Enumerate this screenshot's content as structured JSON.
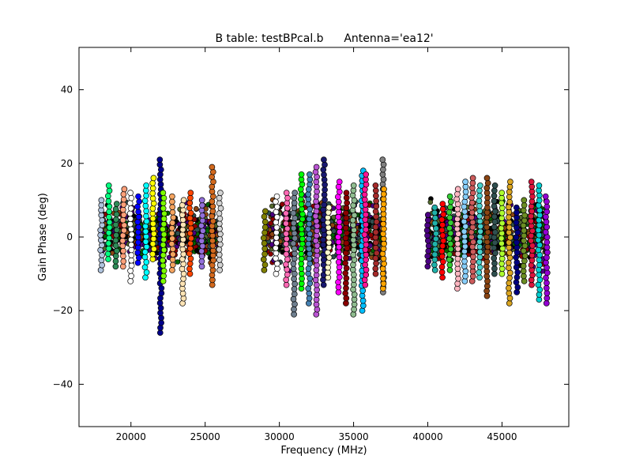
{
  "chart_data": {
    "type": "scatter",
    "title": "B table: testBPcal.b",
    "subtitle": "Antenna='ea12'",
    "xlabel": "Frequency (MHz)",
    "ylabel": "Gain Phase (deg)",
    "xlim": [
      16500,
      49500
    ],
    "ylim": [
      -51.5,
      51.5
    ],
    "xticks": [
      20000,
      25000,
      30000,
      35000,
      40000,
      45000
    ],
    "yticks": [
      -40,
      -20,
      0,
      20,
      40
    ],
    "xtick_labels": [
      "20000",
      "25000",
      "30000",
      "35000",
      "40000",
      "45000"
    ],
    "ytick_labels": [
      "−40",
      "−20",
      "0",
      "20",
      "40"
    ],
    "grid": false,
    "legend": "none",
    "marker": "circle, black edge",
    "band_groups": [
      {
        "x_range": [
          18000,
          26000
        ],
        "y_typical_range": [
          -8,
          10
        ]
      },
      {
        "x_range": [
          29000,
          37000
        ],
        "y_typical_range": [
          -10,
          12
        ]
      },
      {
        "x_range": [
          40000,
          48000
        ],
        "y_typical_range": [
          -10,
          12
        ]
      }
    ],
    "series": [
      {
        "x": 18000,
        "y_min": -9,
        "y_max": 10,
        "color": "#b0c4de"
      },
      {
        "x": 18500,
        "y_min": -6,
        "y_max": 14,
        "color": "#00ff7f"
      },
      {
        "x": 19000,
        "y_min": -8,
        "y_max": 9,
        "color": "#2e8b57"
      },
      {
        "x": 19500,
        "y_min": -8,
        "y_max": 13,
        "color": "#ffa07a"
      },
      {
        "x": 20000,
        "y_min": -12,
        "y_max": 12,
        "color": "#ffffff"
      },
      {
        "x": 20500,
        "y_min": -7,
        "y_max": 11,
        "color": "#0000ff"
      },
      {
        "x": 21000,
        "y_min": -11,
        "y_max": 14,
        "color": "#00ffff"
      },
      {
        "x": 21500,
        "y_min": -6,
        "y_max": 16,
        "color": "#ffff00"
      },
      {
        "x": 22000,
        "y_min": -26,
        "y_max": 21,
        "color": "#00008b"
      },
      {
        "x": 22200,
        "y_min": -12,
        "y_max": 12,
        "color": "#7cfc00"
      },
      {
        "x": 22800,
        "y_min": -9,
        "y_max": 11,
        "color": "#f4a460"
      },
      {
        "x": 23500,
        "y_min": -18,
        "y_max": 10,
        "color": "#ffe4b5"
      },
      {
        "x": 24000,
        "y_min": -10,
        "y_max": 12,
        "color": "#ff4500"
      },
      {
        "x": 24800,
        "y_min": -8,
        "y_max": 10,
        "color": "#9370db"
      },
      {
        "x": 25500,
        "y_min": -13,
        "y_max": 19,
        "color": "#d2691e"
      },
      {
        "x": 26000,
        "y_min": -9,
        "y_max": 12,
        "color": "#d3d3d3"
      },
      {
        "x": 29000,
        "y_min": -9,
        "y_max": 7,
        "color": "#808000"
      },
      {
        "x": 29800,
        "y_min": -10,
        "y_max": 11,
        "color": "#ffffff"
      },
      {
        "x": 30500,
        "y_min": -13,
        "y_max": 12,
        "color": "#ff69b4"
      },
      {
        "x": 31000,
        "y_min": -21,
        "y_max": 12,
        "color": "#708090"
      },
      {
        "x": 31500,
        "y_min": -14,
        "y_max": 17,
        "color": "#00ff00"
      },
      {
        "x": 32000,
        "y_min": -18,
        "y_max": 17,
        "color": "#4682b4"
      },
      {
        "x": 32500,
        "y_min": -21,
        "y_max": 19,
        "color": "#ba55d3"
      },
      {
        "x": 33000,
        "y_min": -13,
        "y_max": 21,
        "color": "#191970"
      },
      {
        "x": 33300,
        "y_min": -11,
        "y_max": 8,
        "color": "#fffacd"
      },
      {
        "x": 34000,
        "y_min": -15,
        "y_max": 15,
        "color": "#ff00ff"
      },
      {
        "x": 34500,
        "y_min": -18,
        "y_max": 12,
        "color": "#8b0000"
      },
      {
        "x": 35000,
        "y_min": -21,
        "y_max": 14,
        "color": "#8fbc8f"
      },
      {
        "x": 35600,
        "y_min": -20,
        "y_max": 18,
        "color": "#00bfff"
      },
      {
        "x": 35800,
        "y_min": -13,
        "y_max": 17,
        "color": "#ff1493"
      },
      {
        "x": 36500,
        "y_min": -10,
        "y_max": 14,
        "color": "#a52a2a"
      },
      {
        "x": 37000,
        "y_min": -15,
        "y_max": 21,
        "color": "#808080"
      },
      {
        "x": 37000,
        "y_min": -14,
        "y_max": 13,
        "color": "#ffa500"
      },
      {
        "x": 40000,
        "y_min": -8,
        "y_max": 6,
        "color": "#4b0082"
      },
      {
        "x": 40500,
        "y_min": -9,
        "y_max": 8,
        "color": "#20b2aa"
      },
      {
        "x": 41000,
        "y_min": -11,
        "y_max": 9,
        "color": "#ff0000"
      },
      {
        "x": 41500,
        "y_min": -9,
        "y_max": 11,
        "color": "#32cd32"
      },
      {
        "x": 42000,
        "y_min": -14,
        "y_max": 13,
        "color": "#ffb6c1"
      },
      {
        "x": 42500,
        "y_min": -12,
        "y_max": 15,
        "color": "#87cefa"
      },
      {
        "x": 43000,
        "y_min": -12,
        "y_max": 16,
        "color": "#cd5c5c"
      },
      {
        "x": 43500,
        "y_min": -11,
        "y_max": 14,
        "color": "#48d1cc"
      },
      {
        "x": 44000,
        "y_min": -16,
        "y_max": 16,
        "color": "#8b4513"
      },
      {
        "x": 44500,
        "y_min": -10,
        "y_max": 14,
        "color": "#2f4f4f"
      },
      {
        "x": 45000,
        "y_min": -10,
        "y_max": 12,
        "color": "#adff2f"
      },
      {
        "x": 45500,
        "y_min": -18,
        "y_max": 15,
        "color": "#daa520"
      },
      {
        "x": 46000,
        "y_min": -15,
        "y_max": 8,
        "color": "#000080"
      },
      {
        "x": 46500,
        "y_min": -12,
        "y_max": 10,
        "color": "#6b8e23"
      },
      {
        "x": 47000,
        "y_min": -13,
        "y_max": 15,
        "color": "#dc143c"
      },
      {
        "x": 47500,
        "y_min": -17,
        "y_max": 14,
        "color": "#00ced1"
      },
      {
        "x": 48000,
        "y_min": -18,
        "y_max": 11,
        "color": "#9400d3"
      }
    ]
  }
}
